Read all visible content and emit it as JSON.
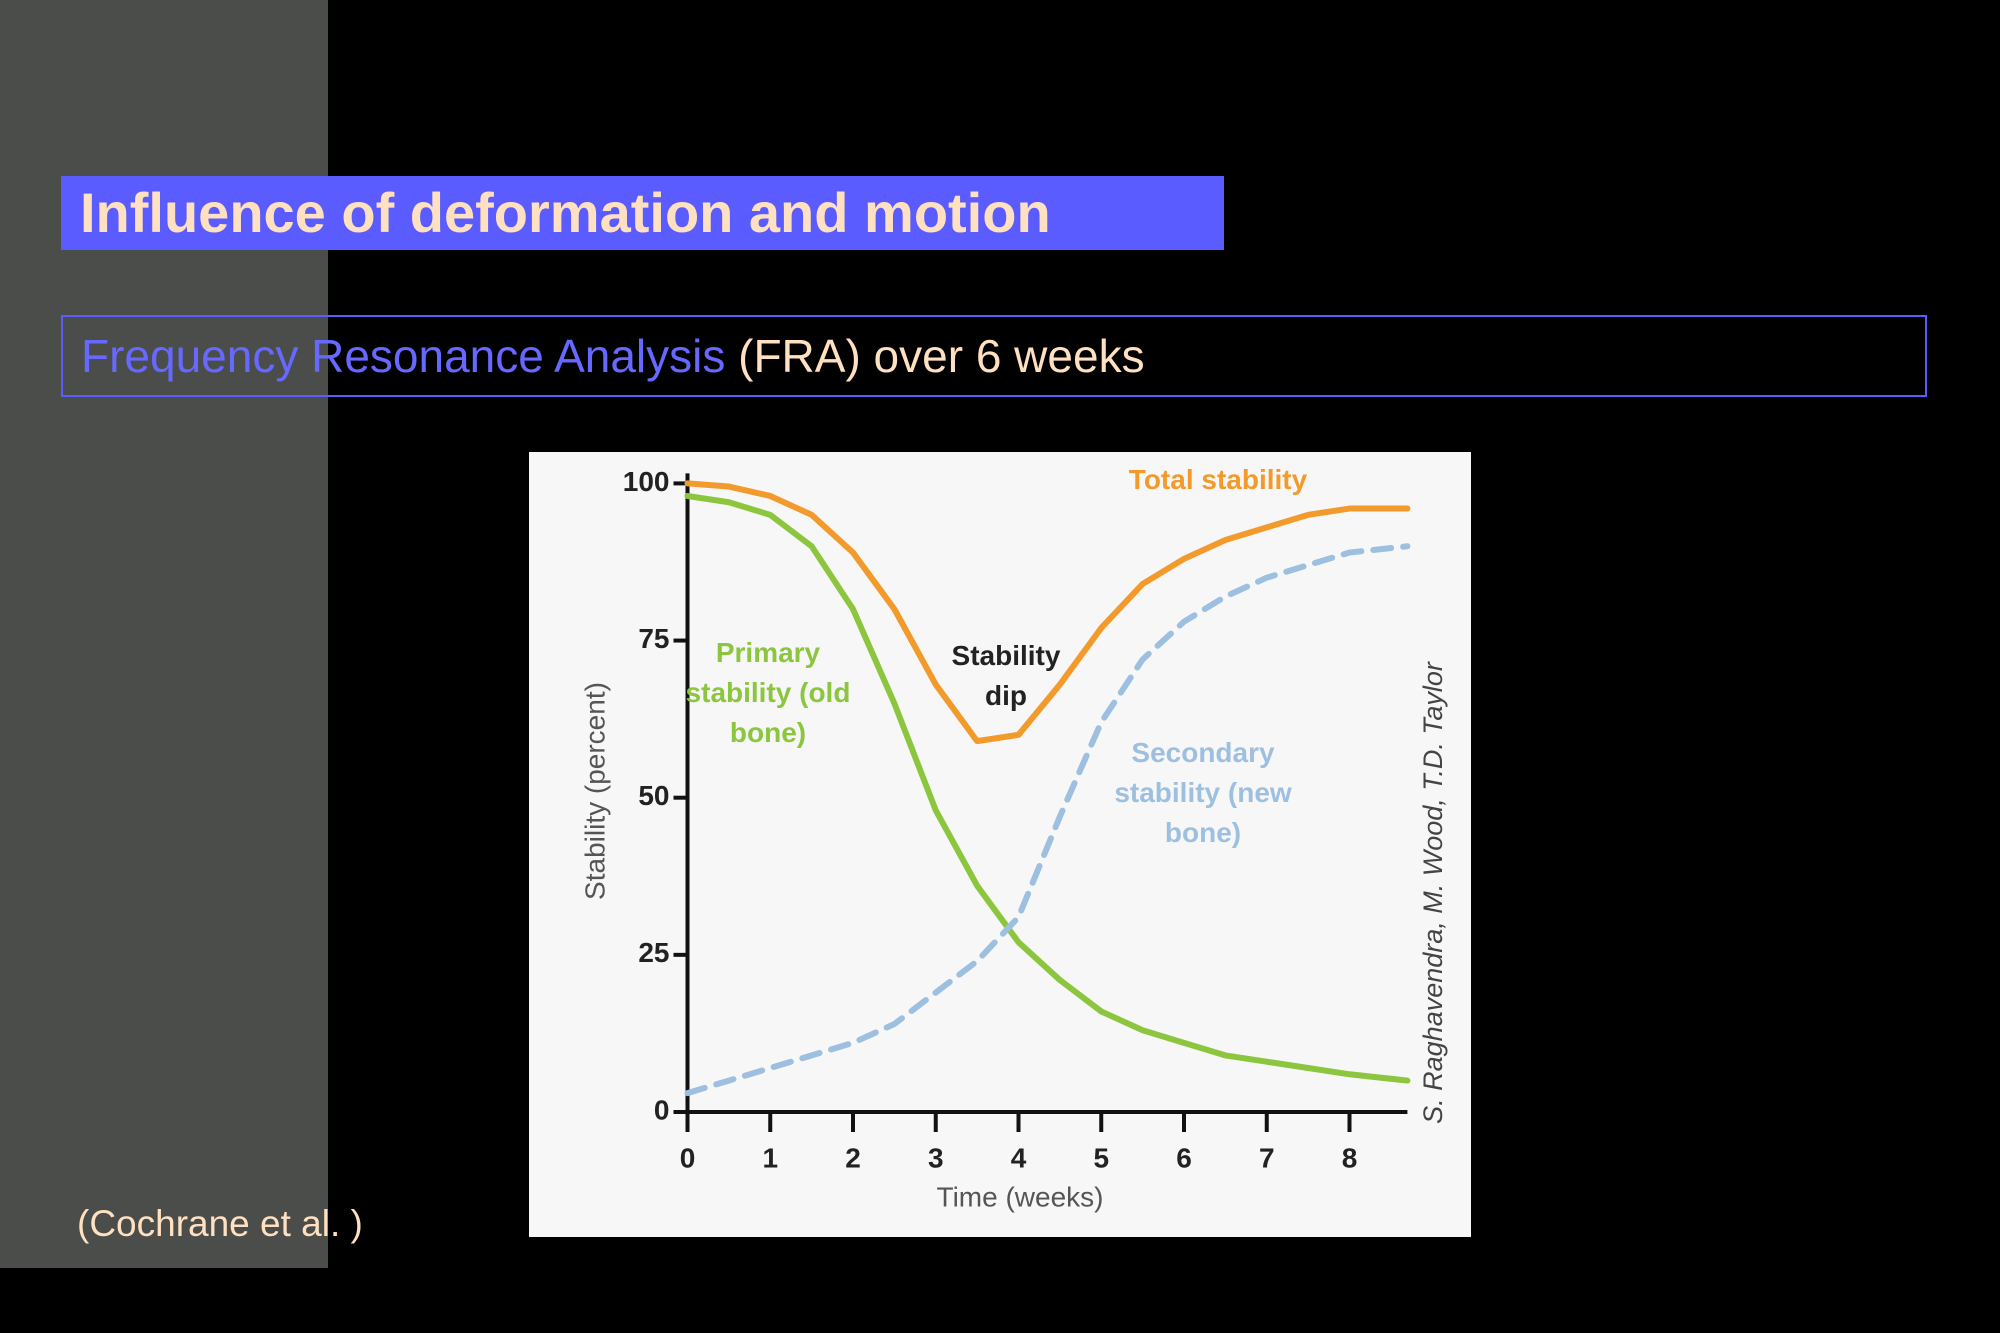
{
  "slide": {
    "title": "Influence of deformation and motion",
    "subtitle": {
      "highlight": "Frequency Resonance Analysis",
      "rest": "(FRA) over 6 weeks"
    },
    "citation": "(Cochrane et al. )"
  },
  "chart_data": {
    "type": "line",
    "x_label": "Time (weeks)",
    "y_label": "Stability (percent)",
    "annotation": "Stability dip",
    "credit": "S. Raghavendra, M. Wood, T.D. Taylor",
    "x": [
      0,
      0.5,
      1,
      1.5,
      2,
      2.5,
      3,
      3.5,
      4,
      4.5,
      5,
      5.5,
      6,
      6.5,
      7,
      7.5,
      8,
      8.7
    ],
    "series": [
      {
        "name": "Total stability",
        "color": "#f39a2c",
        "dashed": false,
        "values": [
          100,
          99.5,
          98,
          95,
          89,
          80,
          68,
          59,
          60,
          68,
          77,
          84,
          88,
          91,
          93,
          95,
          96,
          96
        ]
      },
      {
        "name": "Primary stability (old bone)",
        "color": "#8cc63e",
        "dashed": false,
        "values": [
          98,
          97,
          95,
          90,
          80,
          65,
          48,
          36,
          27,
          21,
          16,
          13,
          11,
          9,
          8,
          7,
          6,
          5
        ]
      },
      {
        "name": "Secondary stability (new bone)",
        "color": "#9dbfe0",
        "dashed": true,
        "values": [
          3,
          5,
          7,
          9,
          11,
          14,
          19,
          24,
          31,
          47,
          62,
          72,
          78,
          82,
          85,
          87,
          89,
          90
        ]
      }
    ],
    "xlim": [
      0,
      8.7
    ],
    "ylim": [
      0,
      100
    ],
    "xticks": [
      0,
      1,
      2,
      3,
      4,
      5,
      6,
      7,
      8
    ],
    "yticks": [
      0,
      25,
      50,
      75,
      100
    ]
  }
}
